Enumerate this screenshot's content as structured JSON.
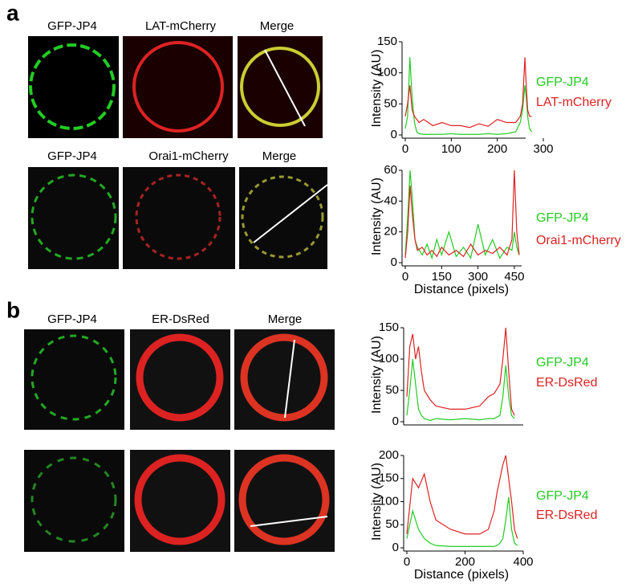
{
  "panels": {
    "labels": [
      "a",
      "b"
    ],
    "rows": [
      [
        "GFP-JP4",
        "LAT-mCherry",
        "Merge"
      ],
      [
        "GFP-JP4",
        "Orai1-mCherry",
        "Merge"
      ],
      [
        "GFP-JP4",
        "ER-DsRed",
        "Merge"
      ]
    ]
  },
  "chart_data": [
    {
      "type": "line",
      "y_label": "Intensity (AU)",
      "xlim": [
        0,
        300
      ],
      "xticks": [
        0,
        100,
        200,
        300
      ],
      "ylim": [
        0,
        150
      ],
      "yticks": [
        0,
        50,
        100,
        150
      ],
      "x": [
        0,
        5,
        10,
        15,
        20,
        25,
        30,
        40,
        60,
        80,
        100,
        120,
        140,
        160,
        180,
        200,
        220,
        240,
        250,
        255,
        260,
        263,
        266,
        270,
        275
      ],
      "series": [
        {
          "name": "GFP-JP4",
          "color": "#22cc22",
          "values": [
            10,
            30,
            125,
            60,
            20,
            5,
            2,
            1,
            1,
            1,
            2,
            1,
            1,
            1,
            2,
            1,
            2,
            5,
            20,
            40,
            80,
            60,
            30,
            10,
            5
          ]
        },
        {
          "name": "LAT-mCherry",
          "color": "#dd2222",
          "values": [
            30,
            50,
            80,
            40,
            30,
            25,
            20,
            25,
            15,
            20,
            15,
            15,
            12,
            18,
            14,
            25,
            20,
            20,
            30,
            50,
            125,
            80,
            40,
            30,
            30
          ]
        }
      ]
    },
    {
      "type": "line",
      "y_label": "Intensity (AU)",
      "x_label": "Distance (pixels)",
      "xlim": [
        0,
        480
      ],
      "xticks": [
        0,
        150,
        300,
        450
      ],
      "ylim": [
        0,
        60
      ],
      "yticks": [
        0,
        20,
        40,
        60
      ],
      "x": [
        0,
        10,
        20,
        30,
        40,
        50,
        70,
        90,
        110,
        130,
        150,
        180,
        210,
        240,
        270,
        300,
        330,
        360,
        390,
        420,
        440,
        450,
        460,
        470
      ],
      "series": [
        {
          "name": "GFP-JP4",
          "color": "#22cc22",
          "values": [
            5,
            30,
            60,
            40,
            15,
            10,
            5,
            12,
            3,
            15,
            5,
            20,
            4,
            10,
            3,
            25,
            5,
            15,
            3,
            10,
            8,
            20,
            10,
            5
          ]
        },
        {
          "name": "Orai1-mCherry",
          "color": "#dd2222",
          "values": [
            3,
            20,
            50,
            30,
            15,
            8,
            10,
            5,
            8,
            4,
            10,
            5,
            8,
            4,
            12,
            5,
            8,
            6,
            10,
            5,
            15,
            60,
            20,
            5
          ]
        }
      ]
    },
    {
      "type": "line",
      "y_label": "Intensity (AU)",
      "xlim": [
        0,
        400
      ],
      "ylim": [
        0,
        150
      ],
      "yticks": [
        0,
        50,
        100,
        150
      ],
      "x": [
        0,
        10,
        20,
        30,
        40,
        50,
        60,
        80,
        100,
        150,
        200,
        250,
        280,
        300,
        320,
        330,
        340,
        350,
        360,
        370
      ],
      "series": [
        {
          "name": "GFP-JP4",
          "color": "#22cc22",
          "values": [
            10,
            50,
            100,
            60,
            20,
            10,
            5,
            2,
            5,
            3,
            5,
            3,
            5,
            5,
            10,
            40,
            90,
            40,
            10,
            5
          ]
        },
        {
          "name": "ER-DsRed",
          "color": "#dd2222",
          "values": [
            40,
            120,
            140,
            100,
            120,
            80,
            50,
            35,
            25,
            20,
            20,
            25,
            40,
            45,
            60,
            100,
            150,
            80,
            20,
            10
          ]
        }
      ]
    },
    {
      "type": "line",
      "y_label": "Intensity (AU)",
      "x_label": "Distance (pixels)",
      "xlim": [
        0,
        400
      ],
      "xticks": [
        0,
        200,
        400
      ],
      "ylim": [
        0,
        200
      ],
      "yticks": [
        0,
        50,
        100,
        150,
        200
      ],
      "x": [
        0,
        20,
        40,
        60,
        80,
        100,
        150,
        200,
        250,
        280,
        300,
        310,
        320,
        330,
        340,
        350,
        360,
        370,
        380
      ],
      "series": [
        {
          "name": "GFP-JP4",
          "color": "#22cc22",
          "values": [
            20,
            80,
            40,
            20,
            10,
            5,
            3,
            3,
            3,
            3,
            3,
            5,
            10,
            20,
            60,
            110,
            40,
            10,
            5
          ]
        },
        {
          "name": "ER-DsRed",
          "color": "#dd2222",
          "values": [
            30,
            150,
            130,
            160,
            100,
            60,
            40,
            30,
            30,
            40,
            80,
            120,
            150,
            180,
            200,
            150,
            100,
            40,
            20
          ]
        }
      ]
    }
  ]
}
